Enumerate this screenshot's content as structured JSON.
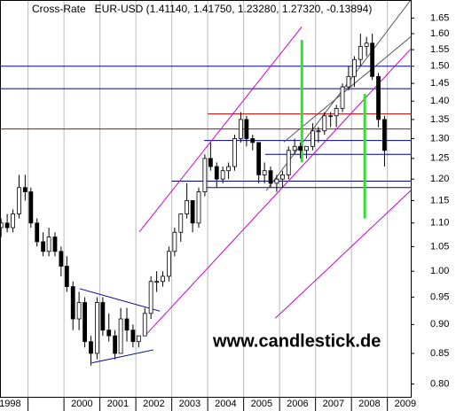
{
  "chart_data": {
    "type": "candlestick",
    "title": "Cross-Rate   EUR-USD (1.41140, 1.41750, 1.23280, 1.27320, -0.13894)",
    "watermark": "www.candlestick.de",
    "log_y": true,
    "xlim": [
      1998.22,
      2009.65
    ],
    "ylim": [
      0.78,
      1.71
    ],
    "xticks": [
      {
        "value": 1998,
        "label": "1998"
      },
      {
        "value": 1999,
        "label": null
      },
      {
        "value": 2000,
        "label": "2000"
      },
      {
        "value": 2001,
        "label": "2001"
      },
      {
        "value": 2002,
        "label": "2002"
      },
      {
        "value": 2003,
        "label": "2003"
      },
      {
        "value": 2004,
        "label": "2004"
      },
      {
        "value": 2005,
        "label": "2005"
      },
      {
        "value": 2006,
        "label": "2006"
      },
      {
        "value": 2007,
        "label": "2007"
      },
      {
        "value": 2008,
        "label": "2008"
      },
      {
        "value": 2009,
        "label": "2009"
      }
    ],
    "yticks": [
      {
        "value": 0.8,
        "label": "0.80"
      },
      {
        "value": 0.85,
        "label": "0.85"
      },
      {
        "value": 0.9,
        "label": "0.90"
      },
      {
        "value": 0.95,
        "label": "0.95"
      },
      {
        "value": 1.0,
        "label": "1.00"
      },
      {
        "value": 1.05,
        "label": "1.05"
      },
      {
        "value": 1.1,
        "label": "1.10"
      },
      {
        "value": 1.15,
        "label": "1.15"
      },
      {
        "value": 1.2,
        "label": "1.20"
      },
      {
        "value": 1.25,
        "label": "1.25"
      },
      {
        "value": 1.3,
        "label": "1.30"
      },
      {
        "value": 1.35,
        "label": "1.35"
      },
      {
        "value": 1.4,
        "label": "1.40"
      },
      {
        "value": 1.45,
        "label": "1.45"
      },
      {
        "value": 1.5,
        "label": "1.50"
      },
      {
        "value": 1.55,
        "label": "1.55"
      },
      {
        "value": 1.6,
        "label": "1.60"
      },
      {
        "value": 1.65,
        "label": "1.65"
      }
    ],
    "grid_x": true,
    "up_color": "#ffffff",
    "down_color": "#000000",
    "x": [
      1998.25,
      1998.42,
      1998.58,
      1998.75,
      1998.92,
      1999.08,
      1999.25,
      1999.42,
      1999.58,
      1999.75,
      1999.92,
      2000.08,
      2000.25,
      2000.42,
      2000.58,
      2000.75,
      2000.92,
      2001.08,
      2001.25,
      2001.42,
      2001.58,
      2001.75,
      2001.92,
      2002.08,
      2002.25,
      2002.42,
      2002.58,
      2002.75,
      2002.92,
      2003.08,
      2003.25,
      2003.42,
      2003.58,
      2003.75,
      2003.92,
      2004.08,
      2004.25,
      2004.42,
      2004.58,
      2004.75,
      2004.92,
      2005.08,
      2005.25,
      2005.42,
      2005.58,
      2005.75,
      2005.92,
      2006.08,
      2006.25,
      2006.42,
      2006.58,
      2006.75,
      2006.92,
      2007.08,
      2007.25,
      2007.42,
      2007.58,
      2007.75,
      2007.92,
      2008.08,
      2008.25,
      2008.42,
      2008.58,
      2008.75,
      2008.92
    ],
    "open": [
      1.09,
      1.1,
      1.09,
      1.12,
      1.18,
      1.17,
      1.1,
      1.06,
      1.04,
      1.07,
      1.04,
      1.01,
      0.97,
      0.91,
      0.94,
      0.87,
      0.85,
      0.94,
      0.89,
      0.88,
      0.85,
      0.91,
      0.89,
      0.87,
      0.88,
      0.92,
      0.98,
      0.98,
      0.99,
      1.04,
      1.08,
      1.12,
      1.15,
      1.1,
      1.17,
      1.25,
      1.23,
      1.2,
      1.22,
      1.23,
      1.3,
      1.35,
      1.3,
      1.29,
      1.21,
      1.22,
      1.19,
      1.2,
      1.21,
      1.27,
      1.28,
      1.27,
      1.28,
      1.32,
      1.32,
      1.36,
      1.36,
      1.38,
      1.44,
      1.47,
      1.52,
      1.56,
      1.57,
      1.47,
      1.35
    ],
    "high": [
      1.11,
      1.12,
      1.13,
      1.21,
      1.21,
      1.18,
      1.11,
      1.08,
      1.09,
      1.08,
      1.05,
      1.03,
      0.98,
      0.96,
      0.95,
      0.88,
      0.95,
      0.95,
      0.92,
      0.89,
      0.93,
      0.93,
      0.9,
      0.88,
      0.93,
      0.99,
      1.0,
      1.0,
      1.05,
      1.09,
      1.12,
      1.19,
      1.15,
      1.18,
      1.26,
      1.29,
      1.24,
      1.23,
      1.24,
      1.31,
      1.37,
      1.36,
      1.31,
      1.29,
      1.24,
      1.23,
      1.21,
      1.22,
      1.28,
      1.3,
      1.29,
      1.28,
      1.34,
      1.33,
      1.37,
      1.37,
      1.39,
      1.45,
      1.5,
      1.53,
      1.6,
      1.59,
      1.6,
      1.48,
      1.36
    ],
    "low": [
      1.07,
      1.08,
      1.08,
      1.11,
      1.15,
      1.09,
      1.05,
      1.03,
      1.03,
      1.03,
      0.99,
      0.96,
      0.89,
      0.89,
      0.86,
      0.83,
      0.84,
      0.88,
      0.87,
      0.84,
      0.85,
      0.87,
      0.86,
      0.86,
      0.88,
      0.91,
      0.96,
      0.97,
      0.98,
      1.03,
      1.06,
      1.11,
      1.08,
      1.09,
      1.16,
      1.22,
      1.18,
      1.19,
      1.2,
      1.22,
      1.29,
      1.28,
      1.27,
      1.19,
      1.19,
      1.18,
      1.17,
      1.18,
      1.2,
      1.26,
      1.25,
      1.25,
      1.27,
      1.29,
      1.31,
      1.33,
      1.33,
      1.37,
      1.43,
      1.44,
      1.5,
      1.53,
      1.46,
      1.33,
      1.23
    ],
    "close": [
      1.1,
      1.09,
      1.12,
      1.18,
      1.17,
      1.1,
      1.06,
      1.04,
      1.07,
      1.04,
      1.01,
      0.97,
      0.91,
      0.94,
      0.87,
      0.85,
      0.94,
      0.89,
      0.88,
      0.85,
      0.91,
      0.89,
      0.87,
      0.88,
      0.92,
      0.98,
      0.98,
      0.99,
      1.04,
      1.08,
      1.12,
      1.15,
      1.1,
      1.17,
      1.25,
      1.23,
      1.2,
      1.22,
      1.23,
      1.3,
      1.35,
      1.3,
      1.29,
      1.21,
      1.22,
      1.19,
      1.2,
      1.21,
      1.27,
      1.28,
      1.27,
      1.28,
      1.32,
      1.32,
      1.36,
      1.36,
      1.38,
      1.44,
      1.47,
      1.52,
      1.56,
      1.57,
      1.47,
      1.35,
      1.27
    ],
    "hlines": [
      {
        "value": 1.5,
        "color": "#000090"
      },
      {
        "value": 1.435,
        "color": "#000090"
      },
      {
        "value": 1.365,
        "color": "#c00000",
        "from": 2004.0
      },
      {
        "value": 1.325,
        "color": "#c00000"
      },
      {
        "value": 1.295,
        "color": "#000090",
        "from": 2003.9
      },
      {
        "value": 1.26,
        "color": "#000090",
        "from": 2005.6
      },
      {
        "value": 1.195,
        "color": "#000090",
        "from": 2003.0
      },
      {
        "value": 1.18,
        "color": "#000090",
        "from": 2003.9
      }
    ],
    "lines": [
      {
        "x": [
          2002.1,
          2006.62
        ],
        "y": [
          1.081,
          1.622
        ],
        "color": "#cc00cc"
      },
      {
        "x": [
          2002.25,
          2009.65
        ],
        "y": [
          0.88,
          1.552
        ],
        "color": "#cc00cc"
      },
      {
        "x": [
          2005.88,
          2009.65
        ],
        "y": [
          0.911,
          1.173
        ],
        "color": "#cc00cc"
      },
      {
        "x": [
          2005.63,
          2009.65
        ],
        "y": [
          1.173,
          1.71
        ],
        "color": "#555555"
      },
      {
        "x": [
          2006.12,
          2009.65
        ],
        "y": [
          1.291,
          1.59
        ],
        "color": "#555555"
      },
      {
        "x": [
          2000.44,
          2002.67
        ],
        "y": [
          0.966,
          0.924
        ],
        "color": "#0000a0"
      },
      {
        "x": [
          2000.77,
          2002.49
        ],
        "y": [
          0.834,
          0.856
        ],
        "color": "#0000a0"
      },
      {
        "x": [
          2006.62,
          2006.62
        ],
        "y": [
          1.58,
          1.24
        ],
        "color": "#33dd33"
      },
      {
        "x": [
          2008.37,
          2008.37
        ],
        "y": [
          1.42,
          1.11
        ],
        "color": "#33dd33"
      }
    ]
  }
}
